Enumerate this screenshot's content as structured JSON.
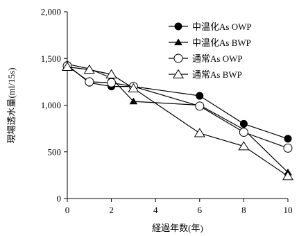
{
  "chart_data": {
    "type": "line",
    "xlabel": "経過年数(年)",
    "ylabel": "現場透水量(ml/15s)",
    "xlim": [
      0,
      10
    ],
    "ylim": [
      0,
      2000
    ],
    "xticks": [
      "0",
      "2",
      "4",
      "6",
      "8",
      "10"
    ],
    "yticks": [
      "0",
      "500",
      "1,000",
      "1,500",
      "2,000"
    ],
    "grid": false,
    "legend_position": "top-right",
    "series": [
      {
        "name": "中温化As OWP",
        "marker": "circle-filled",
        "points": [
          [
            0,
            1430
          ],
          [
            1,
            1240
          ],
          [
            2,
            1200
          ],
          [
            3,
            1200
          ],
          [
            6,
            1100
          ],
          [
            8,
            800
          ],
          [
            10,
            640
          ]
        ]
      },
      {
        "name": "中温化As BWP",
        "marker": "triangle-filled",
        "points": [
          [
            0,
            1440
          ],
          [
            1,
            1390
          ],
          [
            2,
            1290
          ],
          [
            3,
            1040
          ],
          [
            6,
            1000
          ],
          [
            8,
            740
          ],
          [
            10,
            280
          ]
        ]
      },
      {
        "name": "通常As OWP",
        "marker": "circle-open",
        "points": [
          [
            0,
            1420
          ],
          [
            1,
            1250
          ],
          [
            2,
            1240
          ],
          [
            3,
            1200
          ],
          [
            6,
            990
          ],
          [
            8,
            710
          ],
          [
            10,
            540
          ]
        ]
      },
      {
        "name": "通常As BWP",
        "marker": "triangle-open",
        "points": [
          [
            0,
            1410
          ],
          [
            1,
            1380
          ],
          [
            2,
            1330
          ],
          [
            3,
            1180
          ],
          [
            6,
            700
          ],
          [
            8,
            560
          ],
          [
            10,
            240
          ]
        ]
      }
    ]
  }
}
